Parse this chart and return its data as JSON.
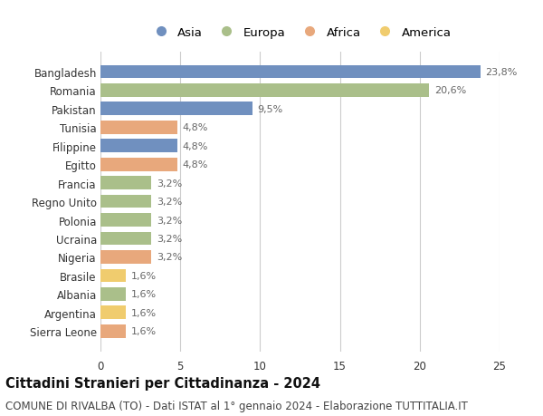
{
  "countries": [
    "Bangladesh",
    "Romania",
    "Pakistan",
    "Tunisia",
    "Filippine",
    "Egitto",
    "Francia",
    "Regno Unito",
    "Polonia",
    "Ucraina",
    "Nigeria",
    "Brasile",
    "Albania",
    "Argentina",
    "Sierra Leone"
  ],
  "values": [
    23.8,
    20.6,
    9.5,
    4.8,
    4.8,
    4.8,
    3.2,
    3.2,
    3.2,
    3.2,
    3.2,
    1.6,
    1.6,
    1.6,
    1.6
  ],
  "labels": [
    "23,8%",
    "20,6%",
    "9,5%",
    "4,8%",
    "4,8%",
    "4,8%",
    "3,2%",
    "3,2%",
    "3,2%",
    "3,2%",
    "3,2%",
    "1,6%",
    "1,6%",
    "1,6%",
    "1,6%"
  ],
  "continents": [
    "Asia",
    "Europa",
    "Asia",
    "Africa",
    "Asia",
    "Africa",
    "Europa",
    "Europa",
    "Europa",
    "Europa",
    "Africa",
    "America",
    "Europa",
    "America",
    "Africa"
  ],
  "continent_colors": {
    "Asia": "#7090bf",
    "Europa": "#aabf8a",
    "Africa": "#e8a87c",
    "America": "#f0cc6e"
  },
  "legend_order": [
    "Asia",
    "Europa",
    "Africa",
    "America"
  ],
  "title": "Cittadini Stranieri per Cittadinanza - 2024",
  "subtitle": "COMUNE DI RIVALBA (TO) - Dati ISTAT al 1° gennaio 2024 - Elaborazione TUTTITALIA.IT",
  "xlim": [
    0,
    25
  ],
  "xticks": [
    0,
    5,
    10,
    15,
    20,
    25
  ],
  "background_color": "#ffffff",
  "grid_color": "#cccccc",
  "bar_height": 0.72,
  "title_fontsize": 10.5,
  "subtitle_fontsize": 8.5,
  "label_fontsize": 8,
  "tick_fontsize": 8.5,
  "legend_fontsize": 9.5
}
